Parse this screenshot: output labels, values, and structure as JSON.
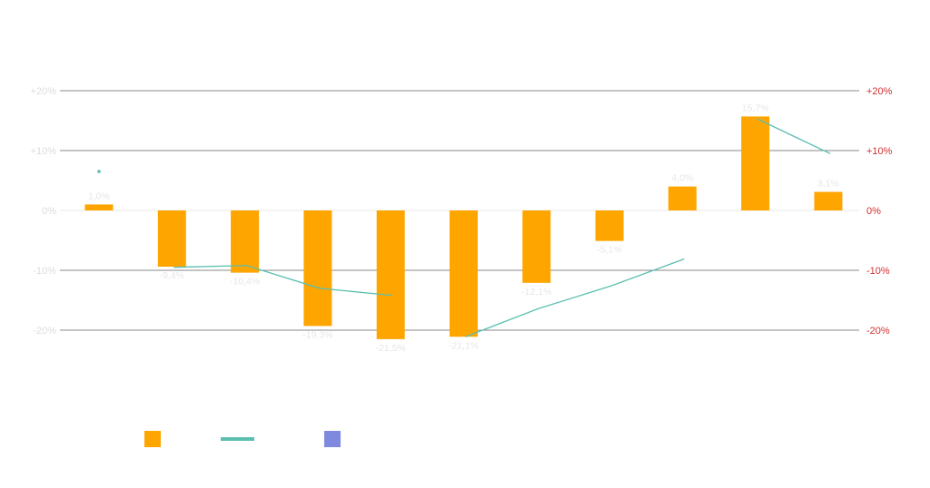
{
  "chart_data": {
    "type": "bar",
    "title": "",
    "xlabel": "",
    "ylabel": "",
    "ylim": [
      -20,
      20
    ],
    "y_ticks_left": [
      "+20%",
      "+10%",
      "0%",
      "-10%",
      "-20%"
    ],
    "y_ticks_right": [
      "+20%",
      "+10%",
      "0%",
      "-10%",
      "-20%"
    ],
    "y_tick_values": [
      20,
      10,
      0,
      -10,
      -20
    ],
    "series": [
      {
        "name": "",
        "kind": "bar",
        "color": "#FFA500",
        "values": [
          1.0,
          -9.4,
          -10.4,
          -19.3,
          -21.5,
          -21.1,
          -12.1,
          -5.1,
          4.0,
          15.7,
          3.1
        ],
        "labels": [
          "1,0%",
          "-9,4%",
          "-10,4%",
          "-19,3%",
          "-21,5%",
          "-21,1%",
          "-12,1%",
          "-5,1%",
          "4,0%",
          "15,7%",
          "3,1%"
        ]
      },
      {
        "name": "",
        "kind": "line",
        "color": "#5BBFB0",
        "values": [
          6.5,
          -9.5,
          -9.2,
          -13.0,
          -14.2,
          -21.1,
          -16.4,
          -12.6,
          -8.1,
          15.3,
          9.5
        ]
      }
    ],
    "legend": [
      {
        "name": "",
        "swatch": "bar",
        "color": "#FFA500"
      },
      {
        "name": "",
        "swatch": "line",
        "color": "#5BBFB0"
      },
      {
        "name": "",
        "swatch": "bar",
        "color": "#7F8ADF"
      }
    ],
    "legend_position": "bottom-left"
  }
}
